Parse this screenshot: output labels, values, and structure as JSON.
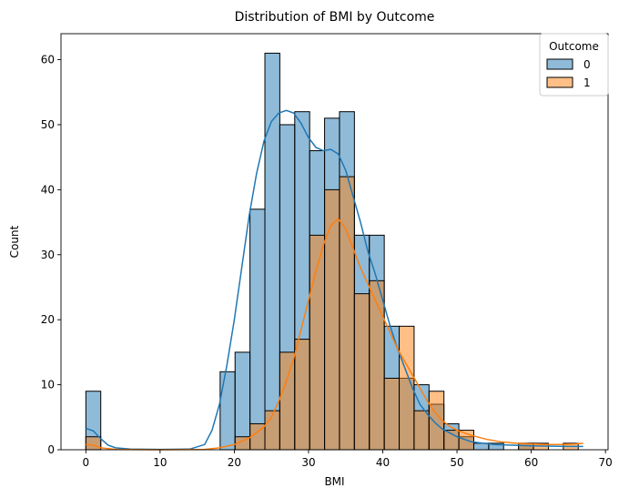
{
  "chart_data": {
    "type": "histogram",
    "title": "Distribution of BMI by Outcome",
    "xlabel": "BMI",
    "ylabel": "Count",
    "xlim": [
      -3.35,
      70.35
    ],
    "ylim": [
      0,
      64
    ],
    "xticks": [
      0,
      10,
      20,
      30,
      40,
      50,
      60,
      70
    ],
    "yticks": [
      0,
      10,
      20,
      30,
      40,
      50,
      60
    ],
    "bin_edges": [
      0.0,
      2.01,
      4.02,
      6.03,
      8.04,
      10.05,
      12.06,
      14.07,
      16.08,
      18.09,
      20.1,
      22.11,
      24.12,
      26.13,
      28.14,
      30.15,
      32.16,
      34.17,
      36.18,
      38.19,
      40.2,
      42.21,
      44.22,
      46.23,
      48.24,
      50.25,
      52.26,
      54.27,
      56.28,
      58.29,
      60.3,
      62.31,
      64.32,
      66.33
    ],
    "legend": {
      "title": "Outcome",
      "position": "upper right"
    },
    "series": [
      {
        "name": "0",
        "color": "#1f77b4",
        "counts": [
          9,
          0,
          0,
          0,
          0,
          0,
          0,
          0,
          0,
          12,
          15,
          37,
          61,
          50,
          52,
          46,
          51,
          52,
          33,
          33,
          19,
          11,
          10,
          7,
          4,
          2,
          1,
          1,
          0,
          1,
          0,
          0,
          0
        ],
        "kde": [
          [
            0,
            3.3
          ],
          [
            1,
            2.9
          ],
          [
            2,
            1.7
          ],
          [
            3,
            0.7
          ],
          [
            4,
            0.3
          ],
          [
            6,
            0.1
          ],
          [
            10,
            0.05
          ],
          [
            14,
            0.1
          ],
          [
            16,
            0.8
          ],
          [
            17,
            3
          ],
          [
            18,
            7
          ],
          [
            19,
            13
          ],
          [
            20,
            20
          ],
          [
            21,
            28
          ],
          [
            22,
            36
          ],
          [
            23,
            42.5
          ],
          [
            24,
            47.5
          ],
          [
            25,
            50.5
          ],
          [
            26,
            51.8
          ],
          [
            27,
            52.2
          ],
          [
            28,
            51.8
          ],
          [
            29,
            50.2
          ],
          [
            30,
            48
          ],
          [
            31,
            46.5
          ],
          [
            32,
            46
          ],
          [
            33,
            46.2
          ],
          [
            34,
            45.5
          ],
          [
            35,
            43
          ],
          [
            36,
            39
          ],
          [
            37,
            35
          ],
          [
            38,
            30.5
          ],
          [
            39,
            27
          ],
          [
            40,
            23
          ],
          [
            41,
            19
          ],
          [
            42,
            15.5
          ],
          [
            43,
            12.5
          ],
          [
            44,
            9.5
          ],
          [
            45,
            7
          ],
          [
            46,
            5.5
          ],
          [
            47,
            4.2
          ],
          [
            48,
            3.2
          ],
          [
            50,
            2
          ],
          [
            52,
            1.2
          ],
          [
            55,
            0.8
          ],
          [
            60,
            0.6
          ],
          [
            65,
            0.5
          ],
          [
            67,
            0.5
          ]
        ]
      },
      {
        "name": "1",
        "color": "#ff7f0e",
        "counts": [
          2,
          0,
          0,
          0,
          0,
          0,
          0,
          0,
          0,
          0,
          2,
          4,
          6,
          15,
          17,
          33,
          40,
          42,
          24,
          26,
          11,
          19,
          6,
          9,
          3,
          3,
          0,
          0,
          0,
          1,
          1,
          0,
          1
        ],
        "kde": [
          [
            0,
            0.8
          ],
          [
            1,
            0.7
          ],
          [
            2,
            0.3
          ],
          [
            4,
            0.05
          ],
          [
            10,
            0
          ],
          [
            16,
            0.05
          ],
          [
            18,
            0.3
          ],
          [
            20,
            0.8
          ],
          [
            22,
            1.8
          ],
          [
            24,
            3.5
          ],
          [
            25,
            5
          ],
          [
            26,
            7.5
          ],
          [
            27,
            10.5
          ],
          [
            28,
            14
          ],
          [
            29,
            18.5
          ],
          [
            30,
            23
          ],
          [
            31,
            27.5
          ],
          [
            32,
            31.5
          ],
          [
            33,
            34.5
          ],
          [
            34,
            35.5
          ],
          [
            35,
            34
          ],
          [
            36,
            31
          ],
          [
            37,
            28
          ],
          [
            38,
            25.5
          ],
          [
            39,
            23
          ],
          [
            40,
            20.5
          ],
          [
            41,
            18
          ],
          [
            42,
            15.5
          ],
          [
            43,
            13.5
          ],
          [
            44,
            11.5
          ],
          [
            45,
            9.5
          ],
          [
            46,
            7.5
          ],
          [
            47,
            5.8
          ],
          [
            48,
            4.5
          ],
          [
            49,
            3.6
          ],
          [
            50,
            3
          ],
          [
            52,
            2.2
          ],
          [
            54,
            1.6
          ],
          [
            56,
            1.2
          ],
          [
            58,
            1
          ],
          [
            60,
            0.9
          ],
          [
            62,
            0.8
          ],
          [
            64,
            0.8
          ],
          [
            66,
            0.9
          ],
          [
            67,
            1
          ]
        ]
      }
    ]
  }
}
